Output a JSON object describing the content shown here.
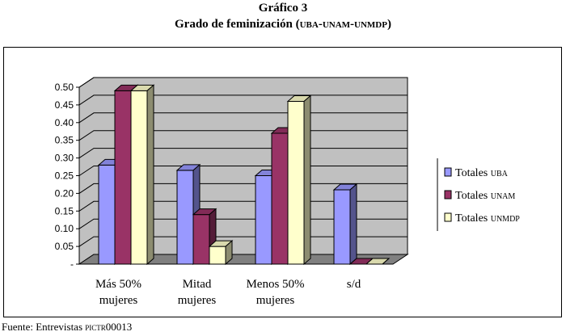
{
  "header": {
    "title": "Gráfico 3",
    "subtitle_prefix": "Grado de feminización (",
    "subtitle_sc": "uba-unam-unmdp",
    "subtitle_suffix": ")"
  },
  "source": {
    "prefix": "Fuente: Entrevistas ",
    "code": "pictr",
    "suffix": "00013"
  },
  "chart_data": {
    "type": "bar",
    "title": "Grado de feminización (UBA-UNaM-UNMdP)",
    "categories": [
      [
        "Más 50%",
        "mujeres"
      ],
      [
        "Mitad",
        "mujeres"
      ],
      [
        "Menos 50%",
        "mujeres"
      ],
      [
        "s/d"
      ]
    ],
    "series": [
      {
        "name": "Totales",
        "name_sc": "uba",
        "color": "#9999ff",
        "values": [
          0.28,
          0.265,
          0.25,
          0.21
        ]
      },
      {
        "name": "Totales",
        "name_sc": "unam",
        "color": "#993366",
        "values": [
          0.49,
          0.14,
          0.37,
          0.0
        ]
      },
      {
        "name": "Totales",
        "name_sc": "unmdp",
        "color": "#ffffcc",
        "values": [
          0.49,
          0.05,
          0.46,
          0.0
        ]
      }
    ],
    "yticks": [
      "0.50",
      "0.45",
      "0.40",
      "0.35",
      "0.30",
      "0.25",
      "0.20",
      "0.15",
      "0.10",
      "0.05",
      "-"
    ],
    "ylim": [
      0,
      0.5
    ],
    "grid": true,
    "legend_position": "right",
    "style": "3d-clustered-column",
    "wall_color": "#c0c0c0",
    "floor_color": "#808080"
  }
}
